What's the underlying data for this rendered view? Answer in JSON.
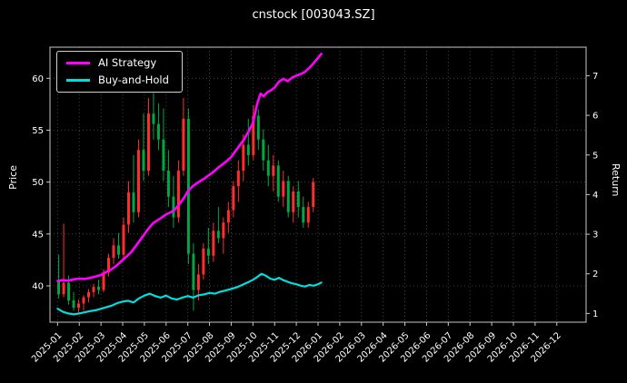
{
  "chart_data": {
    "type": "candlestick+line",
    "title": "cnstock [003043.SZ]",
    "ylabel_left": "Price",
    "ylabel_right": "Return",
    "grid": true,
    "legend_position": "upper left",
    "x_ticks": [
      "2025-01",
      "2025-02",
      "2025-03",
      "2025-04",
      "2025-05",
      "2025-06",
      "2025-07",
      "2025-08",
      "2025-09",
      "2025-10",
      "2025-11",
      "2025-12",
      "2026-01",
      "2026-02",
      "2026-03",
      "2026-04",
      "2026-05",
      "2026-06",
      "2026-07",
      "2026-08",
      "2026-09",
      "2026-10",
      "2026-11",
      "2026-12"
    ],
    "x_range": [
      -0.35,
      24.35
    ],
    "price_axis": {
      "ticks": [
        40,
        45,
        50,
        55,
        60
      ],
      "range": [
        36.5,
        63.0
      ]
    },
    "return_axis": {
      "ticks": [
        1,
        2,
        3,
        4,
        5,
        6,
        7
      ],
      "range": [
        0.78,
        7.72
      ]
    },
    "colors": {
      "background": "#000000",
      "text": "#ffffff",
      "grid": "#4d4d4d",
      "spine": "#c8c8c8",
      "up": "#ff2e2e",
      "down": "#00a843"
    },
    "candles": {
      "columns": [
        "x",
        "o",
        "h",
        "l",
        "c"
      ],
      "rows": [
        [
          0.05,
          40.5,
          43.0,
          38.8,
          39.2
        ],
        [
          0.28,
          39.2,
          46.0,
          38.9,
          40.3
        ],
        [
          0.51,
          40.3,
          41.0,
          38.2,
          38.6
        ],
        [
          0.74,
          38.6,
          39.4,
          37.6,
          37.9
        ],
        [
          0.97,
          37.9,
          38.7,
          37.3,
          38.3
        ],
        [
          1.2,
          38.3,
          39.1,
          37.6,
          38.9
        ],
        [
          1.43,
          38.9,
          39.7,
          38.4,
          39.4
        ],
        [
          1.66,
          39.4,
          40.2,
          38.9,
          39.9
        ],
        [
          1.89,
          39.9,
          40.6,
          39.2,
          39.6
        ],
        [
          2.12,
          39.6,
          41.6,
          39.4,
          41.3
        ],
        [
          2.35,
          41.3,
          43.1,
          40.9,
          42.7
        ],
        [
          2.58,
          42.7,
          44.6,
          42.1,
          43.9
        ],
        [
          2.81,
          43.9,
          45.1,
          42.6,
          43.0
        ],
        [
          3.04,
          43.0,
          46.6,
          42.6,
          45.9
        ],
        [
          3.27,
          45.9,
          50.1,
          45.1,
          49.0
        ],
        [
          3.5,
          49.0,
          52.6,
          46.1,
          47.1
        ],
        [
          3.73,
          47.1,
          54.1,
          46.6,
          53.1
        ],
        [
          3.96,
          53.1,
          56.6,
          50.1,
          51.1
        ],
        [
          4.19,
          51.1,
          58.1,
          50.6,
          56.6
        ],
        [
          4.42,
          56.6,
          58.6,
          54.1,
          55.6
        ],
        [
          4.65,
          55.6,
          57.6,
          53.1,
          54.1
        ],
        [
          4.88,
          54.1,
          57.1,
          50.1,
          51.1
        ],
        [
          5.11,
          51.1,
          53.1,
          47.6,
          48.6
        ],
        [
          5.34,
          48.6,
          50.6,
          45.6,
          46.6
        ],
        [
          5.57,
          46.6,
          52.1,
          46.1,
          51.1
        ],
        [
          5.8,
          51.1,
          58.1,
          50.6,
          56.1
        ],
        [
          6.03,
          56.1,
          57.1,
          42.1,
          43.1
        ],
        [
          6.26,
          43.1,
          44.1,
          37.6,
          39.6
        ],
        [
          6.49,
          39.6,
          42.1,
          38.6,
          41.1
        ],
        [
          6.72,
          41.1,
          44.1,
          40.6,
          43.6
        ],
        [
          6.95,
          43.6,
          45.6,
          42.1,
          42.9
        ],
        [
          7.18,
          42.9,
          46.1,
          42.3,
          45.3
        ],
        [
          7.41,
          45.3,
          47.6,
          44.1,
          44.6
        ],
        [
          7.64,
          44.6,
          46.6,
          43.1,
          46.1
        ],
        [
          7.87,
          46.1,
          48.1,
          45.1,
          47.3
        ],
        [
          8.1,
          47.3,
          50.1,
          46.6,
          49.6
        ],
        [
          8.33,
          49.6,
          52.1,
          48.1,
          51.1
        ],
        [
          8.56,
          51.1,
          54.6,
          50.1,
          53.6
        ],
        [
          8.79,
          53.6,
          56.1,
          51.6,
          52.6
        ],
        [
          9.02,
          52.6,
          57.4,
          52.1,
          56.4
        ],
        [
          9.25,
          56.4,
          57.0,
          53.1,
          54.1
        ],
        [
          9.48,
          54.1,
          55.1,
          51.1,
          52.1
        ],
        [
          9.71,
          52.1,
          53.6,
          49.6,
          50.6
        ],
        [
          9.94,
          50.6,
          52.6,
          49.1,
          51.6
        ],
        [
          10.17,
          51.6,
          52.1,
          48.1,
          48.6
        ],
        [
          10.4,
          48.6,
          51.1,
          47.6,
          50.1
        ],
        [
          10.63,
          50.1,
          50.6,
          46.6,
          47.1
        ],
        [
          10.86,
          47.1,
          49.6,
          46.1,
          49.1
        ],
        [
          11.09,
          49.1,
          50.1,
          46.6,
          47.6
        ],
        [
          11.32,
          47.6,
          48.6,
          45.6,
          46.1
        ],
        [
          11.55,
          46.1,
          48.1,
          45.6,
          47.6
        ],
        [
          11.78,
          47.6,
          50.4,
          47.1,
          50.0
        ]
      ]
    },
    "series": [
      {
        "name": "AI Strategy",
        "color": "#ff00ff",
        "axis": "return",
        "width": 2.6,
        "x": [
          0,
          0.25,
          0.5,
          0.75,
          1.0,
          1.25,
          1.5,
          1.75,
          2.0,
          2.25,
          2.5,
          2.75,
          3.0,
          3.2,
          3.4,
          3.6,
          3.8,
          4.0,
          4.2,
          4.4,
          4.6,
          4.8,
          5.0,
          5.2,
          5.4,
          5.6,
          5.8,
          6.0,
          6.2,
          6.4,
          6.6,
          6.8,
          7.0,
          7.2,
          7.4,
          7.6,
          7.8,
          8.0,
          8.2,
          8.4,
          8.6,
          8.8,
          9.0,
          9.1,
          9.2,
          9.35,
          9.5,
          9.65,
          9.8,
          10.0,
          10.2,
          10.4,
          10.6,
          10.8,
          11.0,
          11.2,
          11.4,
          11.6,
          11.8,
          12.0,
          12.15
        ],
        "y": [
          1.82,
          1.84,
          1.83,
          1.86,
          1.88,
          1.87,
          1.9,
          1.93,
          1.97,
          2.05,
          2.12,
          2.22,
          2.35,
          2.45,
          2.55,
          2.7,
          2.85,
          3.0,
          3.15,
          3.28,
          3.35,
          3.42,
          3.5,
          3.55,
          3.62,
          3.75,
          3.9,
          4.08,
          4.2,
          4.28,
          4.35,
          4.42,
          4.5,
          4.58,
          4.68,
          4.76,
          4.85,
          4.95,
          5.1,
          5.25,
          5.4,
          5.6,
          5.8,
          6.05,
          6.3,
          6.55,
          6.48,
          6.58,
          6.62,
          6.7,
          6.85,
          6.92,
          6.86,
          6.95,
          7.0,
          7.04,
          7.1,
          7.2,
          7.32,
          7.45,
          7.55
        ]
      },
      {
        "name": "Buy-and-Hold",
        "color": "#00dede",
        "axis": "return",
        "width": 2.2,
        "x": [
          0,
          0.25,
          0.5,
          0.75,
          1.0,
          1.25,
          1.5,
          1.75,
          2.0,
          2.25,
          2.5,
          2.75,
          3.0,
          3.25,
          3.5,
          3.75,
          4.0,
          4.25,
          4.5,
          4.75,
          5.0,
          5.25,
          5.5,
          5.75,
          6.0,
          6.25,
          6.5,
          6.75,
          7.0,
          7.25,
          7.5,
          7.75,
          8.0,
          8.25,
          8.5,
          8.75,
          9.0,
          9.2,
          9.4,
          9.6,
          9.8,
          10.0,
          10.2,
          10.4,
          10.6,
          10.8,
          11.0,
          11.2,
          11.4,
          11.6,
          11.8,
          12.0,
          12.15
        ],
        "y": [
          1.12,
          1.04,
          1.0,
          0.98,
          1.0,
          1.03,
          1.06,
          1.08,
          1.12,
          1.16,
          1.2,
          1.26,
          1.3,
          1.32,
          1.28,
          1.38,
          1.45,
          1.5,
          1.44,
          1.4,
          1.45,
          1.38,
          1.35,
          1.4,
          1.44,
          1.4,
          1.46,
          1.48,
          1.52,
          1.5,
          1.55,
          1.58,
          1.62,
          1.66,
          1.72,
          1.78,
          1.85,
          1.92,
          2.0,
          1.95,
          1.88,
          1.85,
          1.9,
          1.84,
          1.8,
          1.76,
          1.74,
          1.7,
          1.68,
          1.72,
          1.7,
          1.74,
          1.78
        ]
      }
    ]
  }
}
